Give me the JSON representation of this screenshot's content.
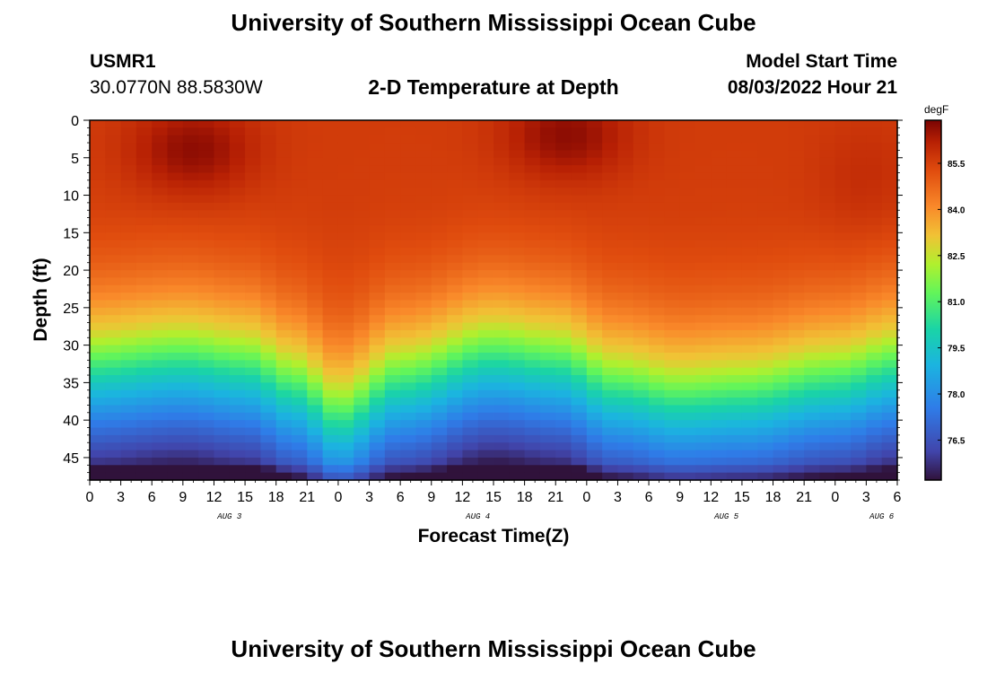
{
  "page": {
    "title_top": "University of Southern Mississippi Ocean Cube",
    "title_bottom": "University of Southern Mississippi Ocean Cube"
  },
  "header": {
    "station_id": "USMR1",
    "coordinates": "30.0770N  88.5830W",
    "model_start_label": "Model Start Time",
    "model_start_value": "08/03/2022 Hour 21"
  },
  "chart_data": {
    "type": "heatmap",
    "title": "2-D Temperature at Depth",
    "xlabel": "Forecast Time(Z)",
    "ylabel": "Depth (ft)",
    "x_tick_labels": [
      "0",
      "3",
      "6",
      "9",
      "12",
      "15",
      "18",
      "21",
      "0",
      "3",
      "6",
      "9",
      "12",
      "15",
      "18",
      "21",
      "0",
      "3",
      "6",
      "9",
      "12",
      "15",
      "18",
      "21",
      "0",
      "3",
      "6"
    ],
    "date_labels": [
      {
        "label": "AUG 3",
        "tick_index": 4.5
      },
      {
        "label": "AUG 4",
        "tick_index": 12.5
      },
      {
        "label": "AUG 5",
        "tick_index": 20.5
      },
      {
        "label": "AUG 6",
        "tick_index": 25.5
      }
    ],
    "y_ticks": [
      0,
      5,
      10,
      15,
      20,
      25,
      30,
      35,
      40,
      45
    ],
    "ylim": [
      0,
      48
    ],
    "x_hours_range": [
      0,
      78
    ],
    "colorbar": {
      "unit": "degF",
      "ticks": [
        "85.5",
        "84.0",
        "82.5",
        "81.0",
        "79.5",
        "78.0",
        "76.5"
      ],
      "range": [
        75.2,
        86.9
      ]
    },
    "thermocline_depth_ft": [
      {
        "hour": 0,
        "depth": 28
      },
      {
        "hour": 9,
        "depth": 27
      },
      {
        "hour": 15,
        "depth": 28
      },
      {
        "hour": 20,
        "depth": 31
      },
      {
        "hour": 24,
        "depth": 35
      },
      {
        "hour": 30,
        "depth": 30
      },
      {
        "hour": 39,
        "depth": 26.5
      },
      {
        "hour": 45,
        "depth": 27.5
      },
      {
        "hour": 51,
        "depth": 31
      },
      {
        "hour": 57,
        "depth": 32.5
      },
      {
        "hour": 63,
        "depth": 32
      },
      {
        "hour": 72,
        "depth": 30
      },
      {
        "hour": 78,
        "depth": 28
      }
    ],
    "warm_cores": [
      {
        "hour": 10,
        "depth": 4,
        "label": "near 86.5"
      },
      {
        "hour": 46,
        "depth": 2,
        "label": "near 86.9"
      }
    ]
  },
  "colors": {
    "warm": "#b41e05",
    "cool": "#2d7ce6",
    "deep": "#281860"
  }
}
